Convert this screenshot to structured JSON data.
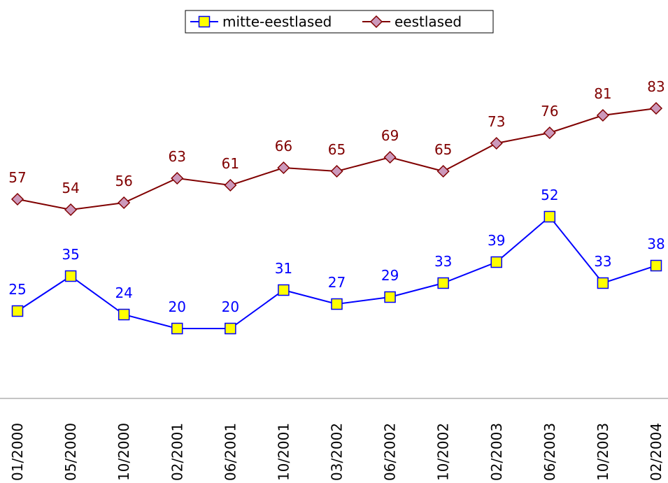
{
  "chart_data": {
    "type": "line",
    "categories": [
      "01/2000",
      "05/2000",
      "10/2000",
      "02/2001",
      "06/2001",
      "10/2001",
      "03/2002",
      "06/2002",
      "10/2002",
      "02/2003",
      "06/2003",
      "10/2003",
      "02/2004"
    ],
    "series": [
      {
        "name": "mitte-eestlased",
        "color": "#0000ff",
        "marker": "square",
        "marker_color": "#ffff00",
        "values": [
          25,
          35,
          24,
          20,
          20,
          31,
          27,
          29,
          33,
          39,
          52,
          33,
          38
        ]
      },
      {
        "name": "eestlased",
        "color": "#800000",
        "marker": "diamond",
        "marker_color": "#cc99bb",
        "values": [
          57,
          54,
          56,
          63,
          61,
          66,
          65,
          69,
          65,
          73,
          76,
          81,
          83
        ]
      }
    ],
    "ylim": [
      0,
      114
    ],
    "legend": "top"
  }
}
